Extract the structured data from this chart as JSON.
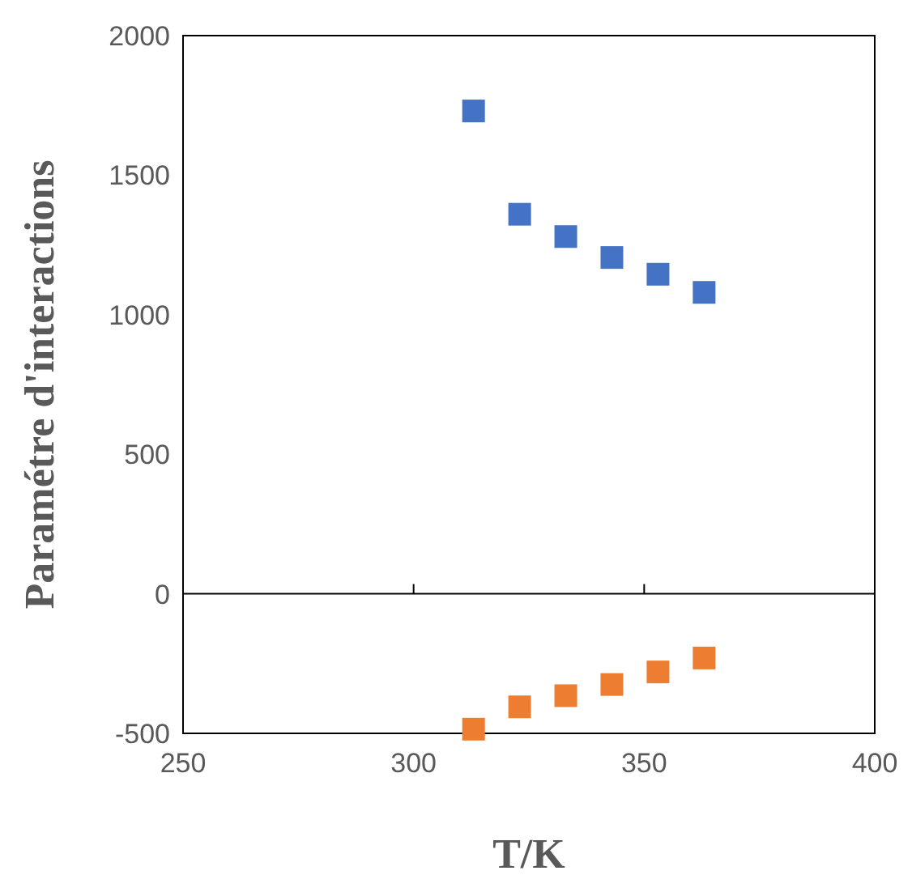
{
  "chart_data": {
    "type": "scatter",
    "xlabel": "T/K",
    "ylabel": "Paramétre d'interactions",
    "marker": "square",
    "xlim": [
      250,
      400
    ],
    "xticks": [
      250,
      300,
      350,
      400
    ],
    "ylim": [
      -500,
      2000
    ],
    "yticks": [
      -500,
      0,
      500,
      1000,
      1500,
      2000
    ],
    "series": [
      {
        "color": "#4472c4",
        "x": [
          313,
          323,
          333,
          343,
          353,
          363
        ],
        "values": [
          1730,
          1360,
          1280,
          1205,
          1145,
          1080
        ]
      },
      {
        "color": "#ed7d31",
        "x": [
          313,
          323,
          333,
          343,
          353,
          363
        ],
        "values": [
          -485,
          -405,
          -365,
          -325,
          -280,
          -230
        ]
      }
    ]
  }
}
